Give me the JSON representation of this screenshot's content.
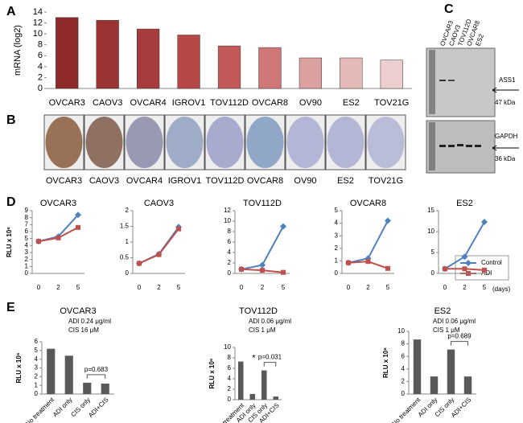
{
  "panel_labels": [
    "A",
    "B",
    "C",
    "D",
    "E"
  ],
  "tissue": {
    "labels": [
      "OVCAR3",
      "CAOV3",
      "OVCAR4",
      "IGROV1",
      "TOV112D",
      "OVCAR8",
      "OV90",
      "ES2",
      "TOV21G"
    ]
  },
  "blot": {
    "lanes": [
      "OVCAR3",
      "CAOV3",
      "TOV112D",
      "OVCAR8",
      "ES2"
    ],
    "top_band": "ASS1",
    "top_size": "47 kDa",
    "bottom_band": "GAPDH",
    "bottom_size": "36 kDa"
  },
  "days_label": "(days)",
  "chart_data": [
    {
      "type": "bar",
      "ylabel": "mRNA (log2)",
      "categories": [
        "OVCAR3",
        "CAOV3",
        "OVCAR4",
        "IGROV1",
        "TOV112D",
        "OVCAR8",
        "OV90",
        "ES2",
        "TOV21G"
      ],
      "values": [
        13,
        12.5,
        10.9,
        9.8,
        7.8,
        7.5,
        5.6,
        5.6,
        5.2
      ],
      "colors": [
        "#8e2a2a",
        "#9b3333",
        "#a83c3c",
        "#b64848",
        "#c25a5a",
        "#cf7777",
        "#dba0a0",
        "#e6b9b9",
        "#eecfcf"
      ],
      "ylim": [
        0,
        14
      ],
      "yticks": [
        0,
        2,
        4,
        6,
        8,
        10,
        12,
        14
      ]
    },
    {
      "type": "line",
      "title": "OVCAR3",
      "ylabel": "RLU x 10⁶",
      "categories": [
        "0",
        "2",
        "5"
      ],
      "series": [
        {
          "name": "Control",
          "color": "#4f81bd",
          "values": [
            4.6,
            5.3,
            8.4
          ]
        },
        {
          "name": "ADI",
          "color": "#c0504d",
          "values": [
            4.6,
            5.1,
            6.6
          ]
        }
      ],
      "ylim": [
        0,
        9
      ],
      "yticks": [
        0,
        1,
        2,
        3,
        4,
        5,
        6,
        7,
        8,
        9
      ]
    },
    {
      "type": "line",
      "title": "CAOV3",
      "categories": [
        "0",
        "2",
        "5"
      ],
      "series": [
        {
          "name": "Control",
          "color": "#4f81bd",
          "values": [
            0.32,
            0.62,
            1.48
          ]
        },
        {
          "name": "ADI",
          "color": "#c0504d",
          "values": [
            0.32,
            0.6,
            1.42
          ]
        }
      ],
      "ylim": [
        0,
        2
      ],
      "yticks": [
        0,
        0.5,
        1,
        1.5,
        2
      ]
    },
    {
      "type": "line",
      "title": "TOV112D",
      "categories": [
        "0",
        "2",
        "5"
      ],
      "series": [
        {
          "name": "Control",
          "color": "#4f81bd",
          "values": [
            0.8,
            1.6,
            9
          ]
        },
        {
          "name": "ADI",
          "color": "#c0504d",
          "values": [
            0.8,
            0.6,
            0.2
          ]
        }
      ],
      "ylim": [
        0,
        12
      ],
      "yticks": [
        0,
        2,
        4,
        6,
        8,
        10,
        12
      ]
    },
    {
      "type": "line",
      "title": "OVCAR8",
      "categories": [
        "0",
        "2",
        "5"
      ],
      "series": [
        {
          "name": "Control",
          "color": "#4f81bd",
          "values": [
            0.85,
            1.2,
            4.2
          ]
        },
        {
          "name": "ADI",
          "color": "#c0504d",
          "values": [
            0.85,
            0.95,
            0.4
          ]
        }
      ],
      "ylim": [
        0,
        5
      ],
      "yticks": [
        0,
        1,
        2,
        3,
        4,
        5
      ]
    },
    {
      "type": "line",
      "title": "ES2",
      "categories": [
        "0",
        "2",
        "5"
      ],
      "series": [
        {
          "name": "Control",
          "color": "#4f81bd",
          "values": [
            1.1,
            4,
            12.3
          ]
        },
        {
          "name": "ADI",
          "color": "#c0504d",
          "values": [
            1.1,
            1.1,
            0.8
          ]
        }
      ],
      "ylim": [
        0,
        15
      ],
      "yticks": [
        0,
        5,
        10,
        15
      ]
    },
    {
      "type": "bar",
      "title": "OVCAR3",
      "notes": [
        "ADI 0.24 μg/ml",
        "CIS 16 μM"
      ],
      "ylabel": "RLU x 10⁶",
      "categories": [
        "No treatment",
        "ADI only",
        "CIS only",
        "ADI+CIS"
      ],
      "values": [
        5.2,
        4.4,
        1.3,
        1.2
      ],
      "color": "#595959",
      "comparison": "p=0.683",
      "ylim": [
        0,
        6
      ],
      "yticks": [
        0,
        1,
        2,
        3,
        4,
        5,
        6
      ]
    },
    {
      "type": "bar",
      "title": "TOV112D",
      "notes": [
        "ADI 0.06 μg/ml",
        "CIS 1 μM"
      ],
      "ylabel": "RLU x 10⁶",
      "categories": [
        "No treatment",
        "ADI only",
        "CIS only",
        "ADI+CIS"
      ],
      "values": [
        7.3,
        1.1,
        5.6,
        0.6
      ],
      "color": "#595959",
      "star": "*",
      "comparison": "p=0.031",
      "ylim": [
        0,
        10
      ],
      "yticks": [
        0,
        2,
        4,
        6,
        8,
        10
      ]
    },
    {
      "type": "bar",
      "title": "ES2",
      "notes": [
        "ADI 0.06 μg/ml",
        "CIS 1 μM"
      ],
      "ylabel": "RLU x 10⁶",
      "categories": [
        "No treatment",
        "ADI only",
        "CIS only",
        "ADI+CIS"
      ],
      "values": [
        8.7,
        2.8,
        7.1,
        2.8
      ],
      "color": "#595959",
      "comparison": "p=0.689",
      "ylim": [
        0,
        10
      ],
      "yticks": [
        0,
        2,
        4,
        6,
        8,
        10
      ]
    }
  ]
}
